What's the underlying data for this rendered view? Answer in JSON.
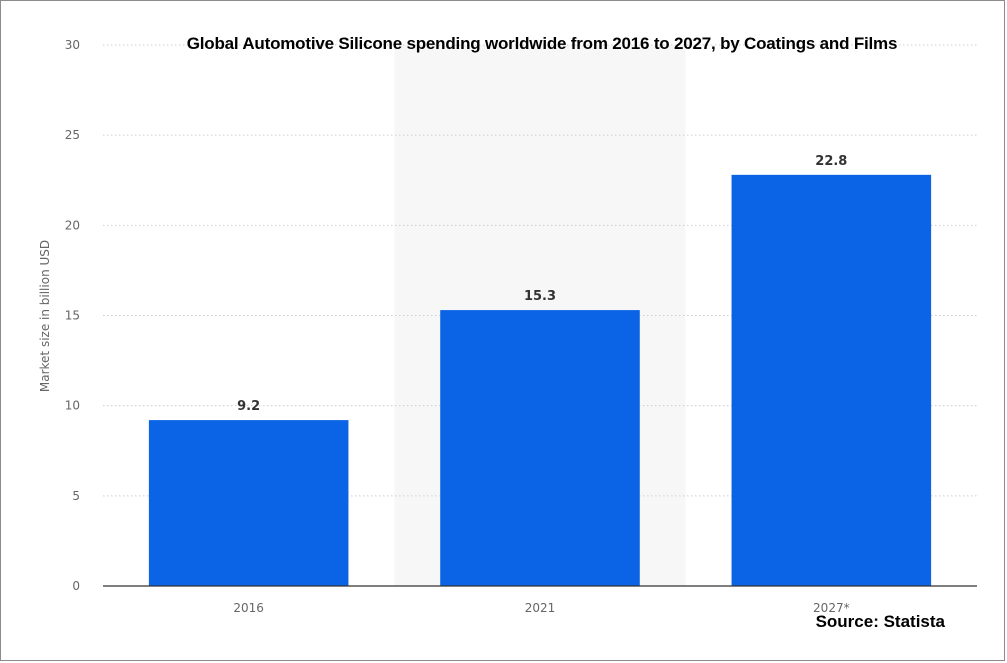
{
  "chart_data": {
    "type": "bar",
    "title": "Global Automotive Silicone spending worldwide from 2016 to 2027, by Coatings and Films",
    "categories": [
      "2016",
      "2021",
      "2027*"
    ],
    "values": [
      9.2,
      15.3,
      22.8
    ],
    "data_labels": [
      "9.2",
      "15.3",
      "22.8"
    ],
    "xlabel": "",
    "ylabel": "Market size in billion USD",
    "ylim": [
      0,
      30
    ],
    "yticks": [
      "0",
      "5",
      "10",
      "15",
      "20",
      "25",
      "30"
    ],
    "grid": true,
    "legend": "none",
    "bar_color": "#0b63e6",
    "highlight_column": "2021"
  },
  "source_text": "Source: Statista",
  "colors": {
    "bar": "#0b63e6",
    "highlight": "#f7f7f7",
    "grid": "#cfcfcf",
    "axis": "#333333",
    "text_muted": "#666666"
  }
}
